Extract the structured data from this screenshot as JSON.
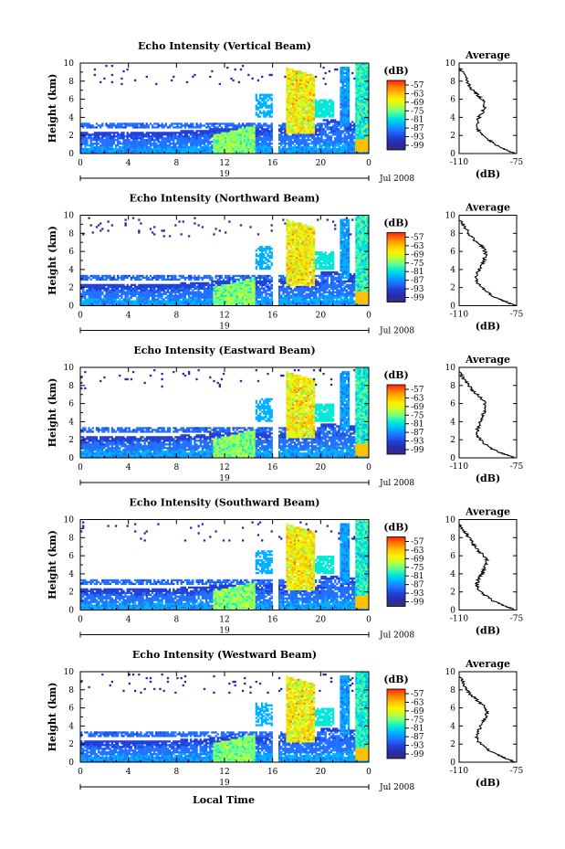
{
  "chart_data": {
    "type": "heatmap",
    "xlabel": "Local Time",
    "x_ticks": [
      "0",
      "4",
      "8",
      "12",
      "16",
      "20",
      "0"
    ],
    "date_label": "19",
    "date_suffix": "Jul 2008",
    "ylabel": "Height (km)",
    "y_ticks": [
      "0",
      "2",
      "4",
      "6",
      "8",
      "10"
    ],
    "ylim": [
      0,
      10
    ],
    "xlim": [
      0,
      24
    ],
    "colorbar": {
      "unit_label": "(dB)",
      "ticks": [
        "-57",
        "-63",
        "-69",
        "-75",
        "-81",
        "-87",
        "-93",
        "-99"
      ],
      "colors": [
        "#ff2010",
        "#ff7a00",
        "#ffc000",
        "#fff000",
        "#c0ff30",
        "#60ff90",
        "#00e8d8",
        "#00b0ff",
        "#2070ff",
        "#2040d8",
        "#2a2aa8",
        "#30307a"
      ]
    },
    "average_panel": {
      "title": "Average",
      "xlabel": "(dB)",
      "x_ticks": [
        "-110",
        "-75"
      ],
      "xlim": [
        -110,
        -75
      ],
      "y_ticks": [
        "0",
        "2",
        "4",
        "6",
        "8",
        "10"
      ]
    },
    "panels": [
      {
        "title": "Echo Intensity (Vertical Beam)",
        "average_profile": [
          [
            0,
            -76
          ],
          [
            0.3,
            -80
          ],
          [
            0.6,
            -84
          ],
          [
            1,
            -88
          ],
          [
            1.5,
            -92
          ],
          [
            2,
            -96
          ],
          [
            2.5,
            -98
          ],
          [
            3,
            -99
          ],
          [
            3.5,
            -99
          ],
          [
            4,
            -98
          ],
          [
            4.5,
            -96
          ],
          [
            5,
            -95
          ],
          [
            5.5,
            -94
          ],
          [
            6,
            -96
          ],
          [
            6.5,
            -99
          ],
          [
            7,
            -102
          ],
          [
            7.5,
            -104
          ],
          [
            8,
            -105
          ],
          [
            8.5,
            -106
          ],
          [
            9,
            -108
          ],
          [
            9.5,
            -110
          ]
        ]
      },
      {
        "title": "Echo Intensity (Northward Beam)",
        "average_profile": [
          [
            0,
            -76
          ],
          [
            0.3,
            -80
          ],
          [
            0.6,
            -84
          ],
          [
            1,
            -89
          ],
          [
            1.5,
            -93
          ],
          [
            2,
            -96
          ],
          [
            2.5,
            -99
          ],
          [
            3,
            -100
          ],
          [
            3.5,
            -99
          ],
          [
            4,
            -98
          ],
          [
            4.5,
            -96
          ],
          [
            5,
            -95
          ],
          [
            5.5,
            -94
          ],
          [
            6,
            -94
          ],
          [
            6.5,
            -96
          ],
          [
            7,
            -99
          ],
          [
            7.5,
            -102
          ],
          [
            8,
            -104
          ],
          [
            8.5,
            -106
          ],
          [
            9,
            -108
          ],
          [
            9.5,
            -110
          ]
        ]
      },
      {
        "title": "Echo Intensity (Eastward Beam)",
        "average_profile": [
          [
            0,
            -76
          ],
          [
            0.3,
            -80
          ],
          [
            0.6,
            -85
          ],
          [
            1,
            -90
          ],
          [
            1.5,
            -94
          ],
          [
            2,
            -97
          ],
          [
            2.5,
            -99
          ],
          [
            3,
            -99
          ],
          [
            3.5,
            -98
          ],
          [
            4,
            -97
          ],
          [
            4.5,
            -96
          ],
          [
            5,
            -95
          ],
          [
            5.5,
            -94
          ],
          [
            6,
            -94
          ],
          [
            6.5,
            -96
          ],
          [
            7,
            -99
          ],
          [
            7.5,
            -102
          ],
          [
            8,
            -104
          ],
          [
            8.5,
            -106
          ],
          [
            9,
            -108
          ],
          [
            9.5,
            -110
          ]
        ]
      },
      {
        "title": "Echo Intensity (Southward Beam)",
        "average_profile": [
          [
            0,
            -76
          ],
          [
            0.3,
            -80
          ],
          [
            0.6,
            -84
          ],
          [
            1,
            -89
          ],
          [
            1.5,
            -93
          ],
          [
            2,
            -97
          ],
          [
            2.5,
            -99
          ],
          [
            3,
            -99
          ],
          [
            3.5,
            -98
          ],
          [
            4,
            -96
          ],
          [
            4.5,
            -95
          ],
          [
            5,
            -94
          ],
          [
            5.5,
            -93
          ],
          [
            6,
            -95
          ],
          [
            6.5,
            -98
          ],
          [
            7,
            -100
          ],
          [
            7.5,
            -102
          ],
          [
            8,
            -104
          ],
          [
            8.5,
            -106
          ],
          [
            9,
            -108
          ],
          [
            9.5,
            -110
          ]
        ]
      },
      {
        "title": "Echo Intensity (Westward Beam)",
        "average_profile": [
          [
            0,
            -76
          ],
          [
            0.3,
            -80
          ],
          [
            0.6,
            -84
          ],
          [
            1,
            -89
          ],
          [
            1.5,
            -93
          ],
          [
            2,
            -97
          ],
          [
            2.5,
            -99
          ],
          [
            3,
            -99
          ],
          [
            3.5,
            -98
          ],
          [
            4,
            -97
          ],
          [
            4.5,
            -95
          ],
          [
            5,
            -94
          ],
          [
            5.5,
            -93
          ],
          [
            6,
            -94
          ],
          [
            6.5,
            -97
          ],
          [
            7,
            -100
          ],
          [
            7.5,
            -103
          ],
          [
            8,
            -105
          ],
          [
            8.5,
            -107
          ],
          [
            9,
            -108
          ],
          [
            9.5,
            -110
          ]
        ]
      }
    ]
  }
}
